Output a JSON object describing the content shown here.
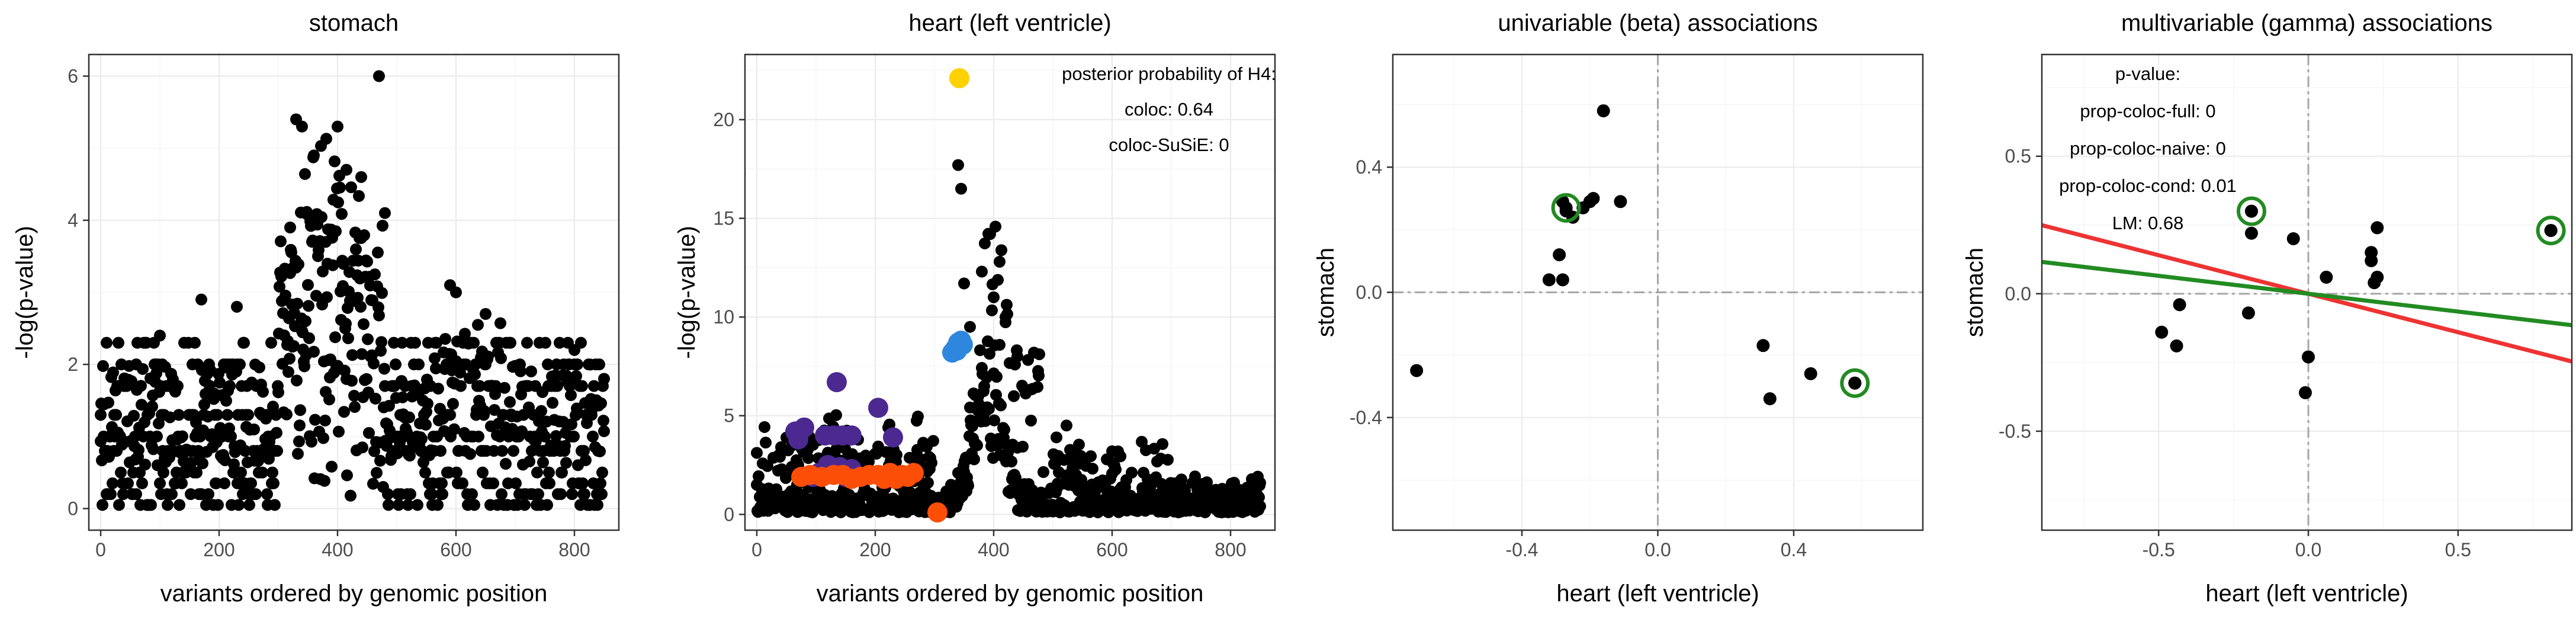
{
  "chart_data": [
    {
      "type": "scatter",
      "title": "stomach",
      "xlabel": "variants ordered by genomic position",
      "ylabel": "-log(p-value)",
      "xlim": [
        -20,
        875
      ],
      "ylim": [
        -0.3,
        6.3
      ],
      "xticks": [
        0,
        200,
        400,
        600,
        800
      ],
      "yticks": [
        0,
        2,
        4,
        6
      ],
      "grid": true,
      "series": [
        {
          "color": "#000000",
          "generator": "Manhattan profile of 850 variants; peak near variant 330-470",
          "sample_points": [
            [
              0,
              1.3
            ],
            [
              10,
              2.3
            ],
            [
              60,
              2.0
            ],
            [
              100,
              2.4
            ],
            [
              170,
              2.9
            ],
            [
              230,
              2.8
            ],
            [
              320,
              3.9
            ],
            [
              330,
              5.4
            ],
            [
              340,
              5.3
            ],
            [
              360,
              4.9
            ],
            [
              380,
              3.7
            ],
            [
              400,
              5.3
            ],
            [
              415,
              4.7
            ],
            [
              440,
              4.6
            ],
            [
              470,
              6.0
            ],
            [
              480,
              4.1
            ],
            [
              590,
              3.1
            ],
            [
              600,
              3.0
            ],
            [
              650,
              2.7
            ],
            [
              800,
              2.2
            ],
            [
              850,
              1.8
            ]
          ]
        }
      ]
    },
    {
      "type": "scatter",
      "title": "heart (left ventricle)",
      "xlabel": "variants ordered by genomic position",
      "ylabel": "-log(p-value)",
      "xlim": [
        -20,
        875
      ],
      "ylim": [
        -0.8,
        23.3
      ],
      "xticks": [
        0,
        200,
        400,
        600,
        800
      ],
      "yticks": [
        0,
        5,
        10,
        15,
        20
      ],
      "grid": true,
      "annotations": [
        "posterior probability of H4:",
        "coloc: 0.64",
        "coloc-SuSiE: 0"
      ],
      "series": [
        {
          "color": "#000000",
          "generator": "Manhattan profile of 850 variants; peak near variant 340-420",
          "sample_points": [
            [
              0,
              1.5
            ],
            [
              60,
              3.5
            ],
            [
              340,
              17.7
            ],
            [
              345,
              16.5
            ],
            [
              350,
              11.7
            ],
            [
              360,
              9.5
            ],
            [
              380,
              12.3
            ],
            [
              400,
              11.0
            ],
            [
              410,
              12.8
            ],
            [
              420,
              10.0
            ],
            [
              440,
              8.0
            ],
            [
              600,
              3.2
            ],
            [
              850,
              1.6
            ]
          ]
        },
        {
          "color": "#4b2991",
          "points": [
            [
              65,
              4.2
            ],
            [
              80,
              4.4
            ],
            [
              70,
              3.8
            ],
            [
              115,
              4.0
            ],
            [
              130,
              4.0
            ],
            [
              145,
              4.0
            ],
            [
              160,
              4.0
            ],
            [
              135,
              6.7
            ],
            [
              205,
              5.4
            ],
            [
              230,
              3.9
            ],
            [
              105,
              2.1
            ],
            [
              120,
              2.5
            ],
            [
              140,
              2.4
            ],
            [
              160,
              2.3
            ],
            [
              95,
              1.9
            ],
            [
              150,
              1.9
            ]
          ]
        },
        {
          "color": "#fc4e07",
          "points": [
            [
              75,
              1.9
            ],
            [
              90,
              2.0
            ],
            [
              110,
              1.9
            ],
            [
              130,
              2.0
            ],
            [
              145,
              2.0
            ],
            [
              160,
              1.8
            ],
            [
              175,
              1.9
            ],
            [
              190,
              2.0
            ],
            [
              205,
              2.0
            ],
            [
              215,
              1.8
            ],
            [
              225,
              2.1
            ],
            [
              235,
              1.8
            ],
            [
              245,
              2.0
            ],
            [
              255,
              1.9
            ],
            [
              265,
              2.1
            ],
            [
              305,
              0.1
            ]
          ]
        },
        {
          "color": "#2e86de",
          "points": [
            [
              330,
              8.2
            ],
            [
              335,
              8.4
            ],
            [
              340,
              8.7
            ],
            [
              345,
              8.8
            ],
            [
              348,
              8.6
            ],
            [
              338,
              8.3
            ]
          ]
        },
        {
          "color": "#ffd100",
          "points": [
            [
              342,
              22.1
            ]
          ]
        }
      ]
    },
    {
      "type": "scatter",
      "title": "univariable (beta) associations",
      "xlabel": "heart (left ventricle)",
      "ylabel": "stomach",
      "xlim": [
        -0.78,
        0.78
      ],
      "ylim": [
        -0.76,
        0.76
      ],
      "xticks": [
        -0.4,
        0.0,
        0.4
      ],
      "xtick_labels": [
        "-0.4",
        "0.0",
        "0.4"
      ],
      "yticks": [
        -0.4,
        0.0,
        0.4
      ],
      "ytick_labels": [
        "-0.4",
        "0.0",
        "0.4"
      ],
      "grid": true,
      "reference_lines": {
        "x": 0,
        "y": 0
      },
      "points": [
        [
          -0.71,
          -0.25
        ],
        [
          -0.32,
          0.04
        ],
        [
          -0.28,
          0.04
        ],
        [
          -0.29,
          0.12
        ],
        [
          -0.28,
          0.29
        ],
        [
          -0.27,
          0.26
        ],
        [
          -0.25,
          0.24
        ],
        [
          -0.22,
          0.27
        ],
        [
          -0.2,
          0.29
        ],
        [
          -0.19,
          0.3
        ],
        [
          -0.16,
          0.58
        ],
        [
          -0.11,
          0.29
        ],
        [
          0.31,
          -0.17
        ],
        [
          0.33,
          -0.34
        ],
        [
          0.45,
          -0.26
        ],
        [
          0.58,
          -0.29
        ]
      ],
      "highlighted": [
        [
          -0.27,
          0.27
        ],
        [
          0.58,
          -0.29
        ]
      ],
      "highlight_color": "#228b22"
    },
    {
      "type": "scatter",
      "title": "multivariable (gamma) associations",
      "xlabel": "heart (left ventricle)",
      "ylabel": "stomach",
      "xlim": [
        -0.89,
        0.88
      ],
      "ylim": [
        -0.86,
        0.87
      ],
      "xticks": [
        -0.5,
        0.0,
        0.5
      ],
      "xtick_labels": [
        "-0.5",
        "0.0",
        "0.5"
      ],
      "yticks": [
        -0.5,
        0.0,
        0.5
      ],
      "ytick_labels": [
        "-0.5",
        "0.0",
        "0.5"
      ],
      "grid": true,
      "reference_lines": {
        "x": 0,
        "y": 0
      },
      "annotations": [
        "p-value:",
        "prop-coloc-full: 0",
        "prop-coloc-naive: 0",
        "prop-coloc-cond: 0.01",
        "LM: 0.68"
      ],
      "points": [
        [
          -0.49,
          -0.14
        ],
        [
          -0.44,
          -0.19
        ],
        [
          -0.43,
          -0.04
        ],
        [
          -0.2,
          -0.07
        ],
        [
          -0.19,
          0.3
        ],
        [
          -0.19,
          0.22
        ],
        [
          -0.05,
          0.2
        ],
        [
          -0.01,
          -0.36
        ],
        [
          0.0,
          -0.23
        ],
        [
          0.06,
          0.06
        ],
        [
          0.21,
          0.15
        ],
        [
          0.21,
          0.12
        ],
        [
          0.22,
          0.04
        ],
        [
          0.23,
          0.06
        ],
        [
          0.23,
          0.24
        ],
        [
          0.81,
          0.23
        ]
      ],
      "highlighted": [
        [
          -0.19,
          0.3
        ],
        [
          0.81,
          0.23
        ]
      ],
      "highlight_color": "#228b22",
      "lines": [
        {
          "color": "#ee3333",
          "slope": -0.28
        },
        {
          "color": "#228b22",
          "slope": -0.13
        }
      ]
    }
  ]
}
